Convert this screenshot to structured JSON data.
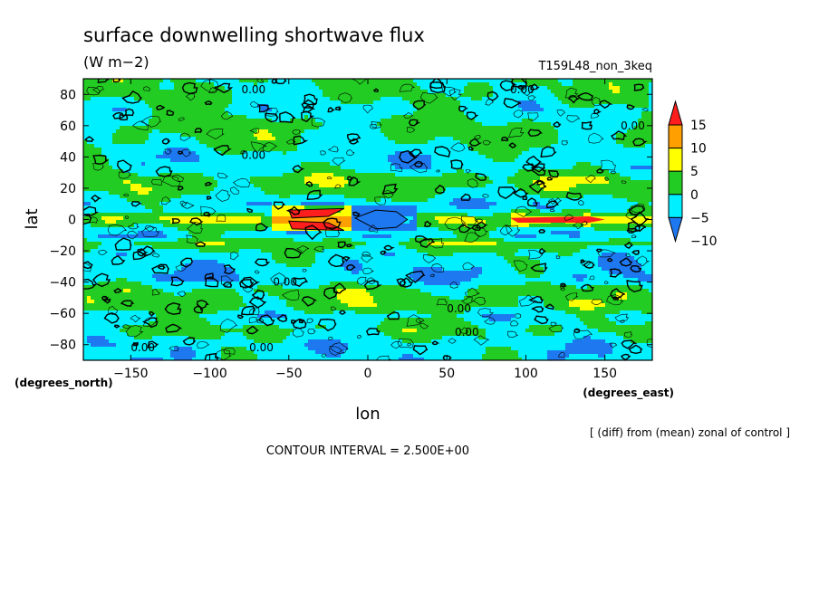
{
  "chart_data": {
    "type": "heatmap",
    "title": "surface downwelling shortwave flux",
    "units": "(W m−2)",
    "run_label": "T159L48_non_3keq",
    "xlabel": "lon",
    "ylabel": "lat",
    "x_units": "(degrees_east)",
    "y_units": "(degrees_north)",
    "xlim": [
      -180,
      180
    ],
    "ylim": [
      -90,
      90
    ],
    "x_ticks": [
      -150,
      -100,
      -50,
      0,
      50,
      100,
      150
    ],
    "y_ticks": [
      -80,
      -60,
      -40,
      -20,
      0,
      20,
      40,
      60,
      80
    ],
    "x_tick_labels": [
      "−150",
      "−100",
      "−50",
      "0",
      "50",
      "100",
      "150"
    ],
    "y_tick_labels": [
      "−80",
      "−60",
      "−40",
      "−20",
      "0",
      "20",
      "40",
      "60",
      "80"
    ],
    "colorbar": {
      "levels": [
        -10,
        -5,
        0,
        5,
        10,
        15
      ],
      "level_labels": [
        "−10",
        "−5",
        "0",
        "5",
        "10",
        "15"
      ],
      "colors": [
        "#1e78f0",
        "#00f0ff",
        "#22cc22",
        "#ffff00",
        "#ffa000",
        "#ff1e1e"
      ]
    },
    "contour_labels": [
      "0.00",
      "0.00",
      "0.00",
      "0.00",
      "0.00",
      "0.00",
      "0.00",
      "0.00",
      "0.00"
    ],
    "footnote": "[ (diff) from (mean) zonal of control ]",
    "contour_interval": "CONTOUR INTERVAL = 2.500E+00"
  }
}
